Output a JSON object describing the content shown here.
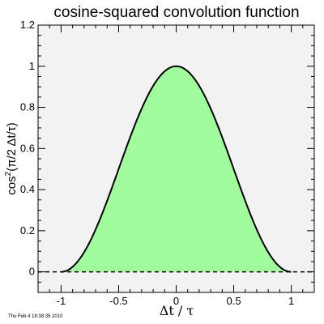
{
  "chart_data": {
    "type": "area",
    "title": "cosine-squared convolution function",
    "xlabel": "Δt / τ",
    "ylabel": "cos²(π/2 Δt/τ)",
    "ylabel_parts": {
      "pre": "cos",
      "sup": "2",
      "post": "(π/2 Δt/τ)"
    },
    "xlim": [
      -1.2,
      1.2
    ],
    "ylim": [
      -0.1,
      1.2
    ],
    "x_ticks": [
      -1,
      -0.5,
      0,
      0.5,
      1
    ],
    "x_tick_labels": [
      "-1",
      "-0.5",
      "0",
      "0.5",
      "1"
    ],
    "y_ticks": [
      0,
      0.2,
      0.4,
      0.6,
      0.8,
      1,
      1.2
    ],
    "y_tick_labels": [
      "0",
      "0.2",
      "0.4",
      "0.6",
      "0.8",
      "1",
      "1.2"
    ],
    "grid": false,
    "function": "cos^2(pi/2 * x) for |x| <= 1, else 0",
    "series": [
      {
        "x": [
          -1.0,
          -0.9,
          -0.8,
          -0.7,
          -0.6,
          -0.5,
          -0.4,
          -0.3,
          -0.2,
          -0.1,
          0.0,
          0.1,
          0.2,
          0.3,
          0.4,
          0.5,
          0.6,
          0.7,
          0.8,
          0.9,
          1.0
        ],
        "y": [
          0.0,
          0.024,
          0.095,
          0.206,
          0.345,
          0.5,
          0.655,
          0.794,
          0.905,
          0.976,
          1.0,
          0.976,
          0.905,
          0.794,
          0.655,
          0.5,
          0.345,
          0.206,
          0.095,
          0.024,
          0.0
        ]
      }
    ],
    "reference_line": {
      "y": 0,
      "style": "dashed"
    },
    "colors": {
      "fill": "#a0fc9c",
      "plot_background": "#f2f2f2",
      "curve": "#000000"
    }
  },
  "timestamp": "Thu Feb  4 18:38:35 2010"
}
